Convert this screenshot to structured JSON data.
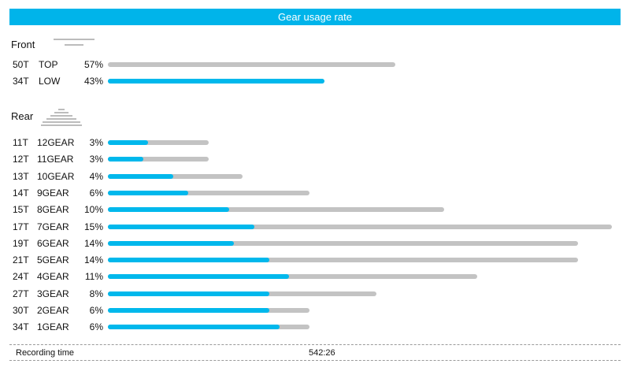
{
  "title": "Gear usage rate",
  "chart_data": [
    {
      "type": "bar",
      "section": "Front",
      "categories": [
        "50T TOP",
        "34T LOW"
      ],
      "rows": [
        {
          "teeth": "50T",
          "gear": "TOP",
          "percent_label": "57%",
          "value": 57,
          "bar_length": 57,
          "highlight": 0
        },
        {
          "teeth": "34T",
          "gear": "LOW",
          "percent_label": "43%",
          "value": 43,
          "bar_length": 43,
          "highlight": 43
        }
      ],
      "bar_max": 100
    },
    {
      "type": "bar",
      "section": "Rear",
      "categories": [
        "11T 12GEAR",
        "12T 11GEAR",
        "13T 10GEAR",
        "14T 9GEAR",
        "15T 8GEAR",
        "17T 7GEAR",
        "19T 6GEAR",
        "21T 5GEAR",
        "24T 4GEAR",
        "27T 3GEAR",
        "30T 2GEAR",
        "34T 1GEAR"
      ],
      "rows": [
        {
          "teeth": "11T",
          "gear": "12GEAR",
          "percent_label": "3%",
          "value": 3,
          "bar_length": 3,
          "highlight": 1.2
        },
        {
          "teeth": "12T",
          "gear": "11GEAR",
          "percent_label": "3%",
          "value": 3,
          "bar_length": 3,
          "highlight": 1.05
        },
        {
          "teeth": "13T",
          "gear": "10GEAR",
          "percent_label": "4%",
          "value": 4,
          "bar_length": 4,
          "highlight": 1.95
        },
        {
          "teeth": "14T",
          "gear": "9GEAR",
          "percent_label": "6%",
          "value": 6,
          "bar_length": 6,
          "highlight": 2.4
        },
        {
          "teeth": "15T",
          "gear": "8GEAR",
          "percent_label": "10%",
          "value": 10,
          "bar_length": 10,
          "highlight": 3.6
        },
        {
          "teeth": "17T",
          "gear": "7GEAR",
          "percent_label": "15%",
          "value": 15,
          "bar_length": 15,
          "highlight": 4.35
        },
        {
          "teeth": "19T",
          "gear": "6GEAR",
          "percent_label": "14%",
          "value": 14,
          "bar_length": 14,
          "highlight": 3.75
        },
        {
          "teeth": "21T",
          "gear": "5GEAR",
          "percent_label": "14%",
          "value": 14,
          "bar_length": 14,
          "highlight": 4.8
        },
        {
          "teeth": "24T",
          "gear": "4GEAR",
          "percent_label": "11%",
          "value": 11,
          "bar_length": 11,
          "highlight": 5.4
        },
        {
          "teeth": "27T",
          "gear": "3GEAR",
          "percent_label": "8%",
          "value": 8,
          "bar_length": 8,
          "highlight": 4.8
        },
        {
          "teeth": "30T",
          "gear": "2GEAR",
          "percent_label": "6%",
          "value": 6,
          "bar_length": 6,
          "highlight": 4.8
        },
        {
          "teeth": "34T",
          "gear": "1GEAR",
          "percent_label": "6%",
          "value": 6,
          "bar_length": 6,
          "highlight": 5.1
        }
      ],
      "bar_max": 15
    }
  ],
  "footer": {
    "label": "Recording time",
    "value": "542:26"
  },
  "colors": {
    "title_bar": "#00b4ea",
    "bar_fill": "#00b8ec",
    "bar_track": "#c3c3c3"
  }
}
